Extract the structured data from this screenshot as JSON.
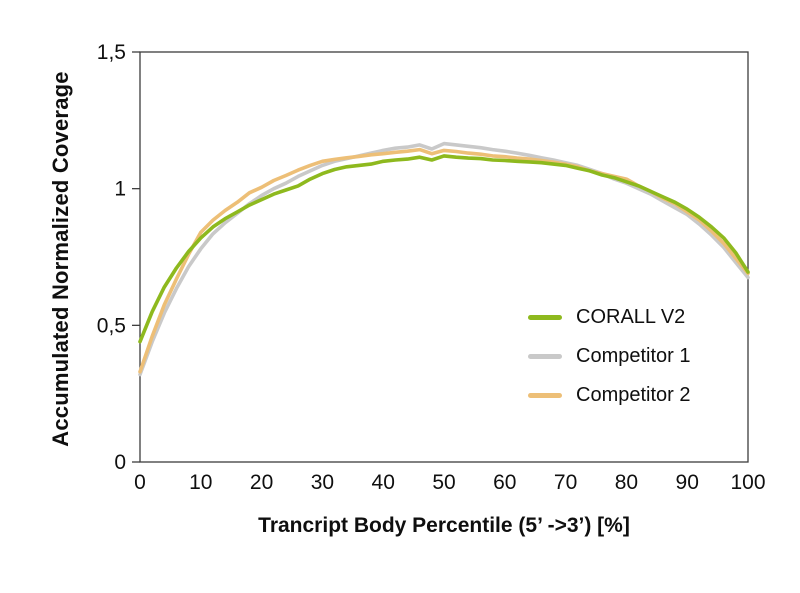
{
  "figure": {
    "background": "#ffffff",
    "axis_color": "#3d3d3d",
    "text_color": "#0f0f0f"
  },
  "chart_data": {
    "type": "line",
    "title": "",
    "xlabel": "Trancript Body Percentile (5’ ->3’) [%]",
    "ylabel": "Accumulated Normalized Coverage",
    "xlim": [
      0,
      100
    ],
    "ylim": [
      0,
      1.5
    ],
    "grid": false,
    "legend_position": "inside-right",
    "x_ticks": [
      0,
      10,
      20,
      30,
      40,
      50,
      60,
      70,
      80,
      90,
      100
    ],
    "x_tick_labels": [
      "0",
      "10",
      "20",
      "30",
      "40",
      "50",
      "60",
      "70",
      "80",
      "90",
      "100"
    ],
    "y_ticks": [
      0,
      0.5,
      1,
      1.5
    ],
    "y_tick_labels": [
      "0",
      "0,5",
      "1",
      "1,5"
    ],
    "x_step": 2,
    "x_start": 0,
    "series": [
      {
        "name": "CORALL V2",
        "color": "#8eb91e",
        "values": [
          0.44,
          0.55,
          0.64,
          0.71,
          0.77,
          0.82,
          0.86,
          0.89,
          0.915,
          0.94,
          0.96,
          0.98,
          0.995,
          1.01,
          1.035,
          1.055,
          1.07,
          1.08,
          1.085,
          1.09,
          1.1,
          1.105,
          1.108,
          1.115,
          1.105,
          1.12,
          1.115,
          1.112,
          1.11,
          1.105,
          1.103,
          1.1,
          1.098,
          1.095,
          1.09,
          1.085,
          1.075,
          1.065,
          1.05,
          1.04,
          1.025,
          1.01,
          0.99,
          0.97,
          0.95,
          0.925,
          0.895,
          0.86,
          0.82,
          0.765,
          0.695
        ]
      },
      {
        "name": "Competitor 1",
        "color": "#c9c9c9",
        "values": [
          0.32,
          0.44,
          0.545,
          0.635,
          0.715,
          0.78,
          0.835,
          0.875,
          0.91,
          0.945,
          0.975,
          1.0,
          1.02,
          1.045,
          1.065,
          1.085,
          1.1,
          1.11,
          1.12,
          1.13,
          1.14,
          1.148,
          1.152,
          1.16,
          1.145,
          1.165,
          1.16,
          1.155,
          1.15,
          1.143,
          1.137,
          1.13,
          1.122,
          1.113,
          1.105,
          1.095,
          1.085,
          1.07,
          1.055,
          1.035,
          1.02,
          1.0,
          0.98,
          0.955,
          0.93,
          0.905,
          0.87,
          0.83,
          0.785,
          0.73,
          0.675
        ]
      },
      {
        "name": "Competitor 2",
        "color": "#edbf77",
        "values": [
          0.33,
          0.46,
          0.575,
          0.67,
          0.76,
          0.84,
          0.885,
          0.92,
          0.95,
          0.985,
          1.005,
          1.03,
          1.048,
          1.068,
          1.085,
          1.1,
          1.107,
          1.113,
          1.118,
          1.124,
          1.128,
          1.133,
          1.137,
          1.143,
          1.128,
          1.14,
          1.136,
          1.13,
          1.126,
          1.12,
          1.117,
          1.112,
          1.108,
          1.103,
          1.097,
          1.09,
          1.08,
          1.065,
          1.055,
          1.045,
          1.035,
          1.01,
          0.99,
          0.965,
          0.945,
          0.915,
          0.885,
          0.845,
          0.8,
          0.745,
          0.69
        ]
      }
    ]
  }
}
